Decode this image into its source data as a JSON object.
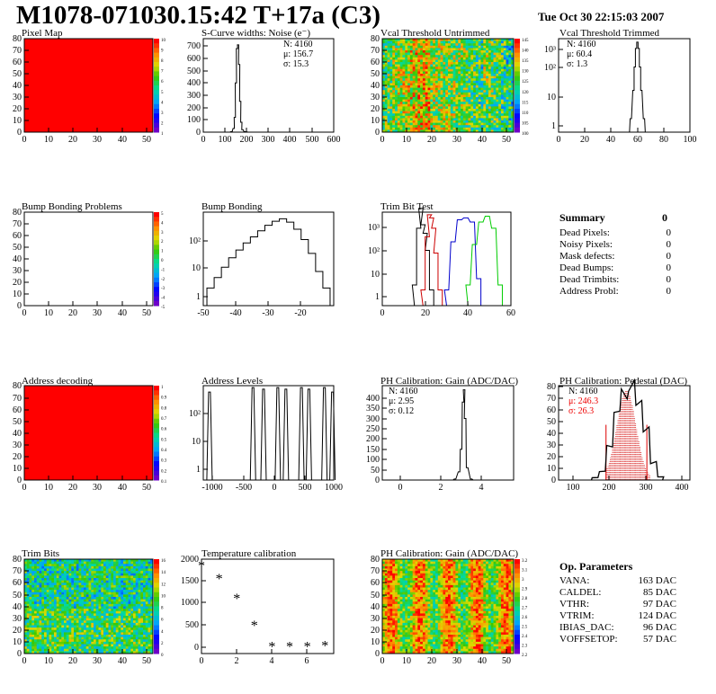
{
  "header": {
    "title": "M1078-071030.15:42 T+17a (C3)",
    "date": "Tue Oct 30 22:15:03 2007"
  },
  "colors": {
    "red": "#ff0000",
    "frame": "#000000",
    "trim_green": "#00cc00",
    "trim_blue": "#0000cc",
    "trim_red": "#cc0000"
  },
  "panels": {
    "pixel_map": {
      "title": "Pixel Map",
      "xticks": [
        "0",
        "10",
        "20",
        "30",
        "40",
        "50"
      ],
      "yticks": [
        "0",
        "10",
        "20",
        "30",
        "40",
        "50",
        "60",
        "70",
        "80"
      ],
      "zticks": [
        "10",
        "9",
        "8",
        "7",
        "6",
        "5",
        "4",
        "3",
        "2",
        "1"
      ],
      "fill": "uniform red"
    },
    "noise": {
      "title": "S-Curve widths: Noise (e⁻)",
      "xticks": [
        "0",
        "100",
        "200",
        "300",
        "400",
        "500",
        "600"
      ],
      "yticks": [
        "0",
        "100",
        "200",
        "300",
        "400",
        "500",
        "600",
        "700"
      ],
      "stats": [
        "N: 4160",
        "μ: 156.7",
        "σ: 15.3"
      ]
    },
    "vcal_untrimmed": {
      "title": "Vcal Threshold Untrimmed",
      "xticks": [
        "0",
        "10",
        "20",
        "30",
        "40",
        "50"
      ],
      "yticks": [
        "0",
        "10",
        "20",
        "30",
        "40",
        "50",
        "60",
        "70",
        "80"
      ],
      "zticks": [
        "145",
        "140",
        "135",
        "130",
        "125",
        "120",
        "115",
        "110",
        "105",
        "100"
      ]
    },
    "vcal_trimmed": {
      "title": "Vcal Threshold Trimmed",
      "xticks": [
        "0",
        "20",
        "40",
        "60",
        "80",
        "100"
      ],
      "yticks": [
        "1",
        "10",
        "10²",
        "10³"
      ],
      "stats": [
        "N: 4160",
        "μ: 60.4",
        "σ: 1.3"
      ]
    },
    "bump_problems": {
      "title": "Bump Bonding Problems",
      "xticks": [
        "0",
        "10",
        "20",
        "30",
        "40",
        "50"
      ],
      "yticks": [
        "0",
        "10",
        "20",
        "30",
        "40",
        "50",
        "60",
        "70",
        "80"
      ],
      "zticks": [
        "5",
        "4",
        "3",
        "2",
        "1",
        "0",
        "-1",
        "-2",
        "-3",
        "-4",
        "-5"
      ]
    },
    "bump_bonding": {
      "title": "Bump Bonding",
      "xticks": [
        "-50",
        "-40",
        "-30",
        "-20"
      ],
      "yticks": [
        "1",
        "10",
        "10²"
      ]
    },
    "trim_bit_test": {
      "title": "Trim Bit Test",
      "xticks": [
        "0",
        "20",
        "40",
        "60"
      ],
      "yticks": [
        "1",
        "10",
        "10²",
        "10³"
      ]
    },
    "summary": {
      "title": "Summary",
      "total": "0",
      "rows": [
        {
          "label": "Dead Pixels:",
          "value": "0"
        },
        {
          "label": "Noisy Pixels:",
          "value": "0"
        },
        {
          "label": "Mask defects:",
          "value": "0"
        },
        {
          "label": "Dead Bumps:",
          "value": "0"
        },
        {
          "label": "Dead Trimbits:",
          "value": "0"
        },
        {
          "label": "Address Probl:",
          "value": "0"
        }
      ]
    },
    "address_decoding": {
      "title": "Address decoding",
      "xticks": [
        "0",
        "10",
        "20",
        "30",
        "40",
        "50"
      ],
      "yticks": [
        "0",
        "10",
        "20",
        "30",
        "40",
        "50",
        "60",
        "70",
        "80"
      ],
      "zticks": [
        "1",
        "0.9",
        "0.8",
        "0.7",
        "0.6",
        "0.5",
        "0.4",
        "0.3",
        "0.2",
        "0.1"
      ],
      "fill": "uniform red"
    },
    "address_levels": {
      "title": "Address Levels",
      "xticks": [
        "-1000",
        "-500",
        "0",
        "500",
        "1000"
      ],
      "yticks": [
        "1",
        "10",
        "10²"
      ]
    },
    "ph_gain": {
      "title": "PH Calibration: Gain (ADC/DAC)",
      "xticks": [
        "0",
        "2",
        "4"
      ],
      "yticks": [
        "0",
        "50",
        "100",
        "150",
        "200",
        "250",
        "300",
        "350",
        "400"
      ],
      "stats": [
        "N: 4160",
        "μ: 2.95",
        "σ: 0.12"
      ]
    },
    "ph_pedestal": {
      "title": "PH Calibration: Pedestal (DAC)",
      "xticks": [
        "100",
        "200",
        "300",
        "400"
      ],
      "yticks": [
        "0",
        "10",
        "20",
        "30",
        "40",
        "50",
        "60",
        "70",
        "80"
      ],
      "stats": [
        "N: 4160",
        "μ: 246.3",
        "σ: 26.3"
      ]
    },
    "trim_bits": {
      "title": "Trim Bits",
      "xticks": [
        "0",
        "10",
        "20",
        "30",
        "40",
        "50"
      ],
      "yticks": [
        "0",
        "10",
        "20",
        "30",
        "40",
        "50",
        "60",
        "70",
        "80"
      ],
      "zticks": [
        "16",
        "14",
        "12",
        "10",
        "8",
        "6",
        "4",
        "2",
        "0"
      ]
    },
    "temperature": {
      "title": "Temperature calibration",
      "xticks": [
        "0",
        "2",
        "4",
        "6"
      ],
      "yticks": [
        "0",
        "500",
        "1000",
        "1500",
        "2000"
      ]
    },
    "ph_gain_map": {
      "title": "PH Calibration: Gain (ADC/DAC)",
      "xticks": [
        "0",
        "10",
        "20",
        "30",
        "40",
        "50"
      ],
      "yticks": [
        "0",
        "10",
        "20",
        "30",
        "40",
        "50",
        "60",
        "70",
        "80"
      ],
      "zticks": [
        "3.2",
        "3.1",
        "3",
        "2.9",
        "2.8",
        "2.7",
        "2.6",
        "2.5",
        "2.4",
        "2.3",
        "2.2"
      ]
    },
    "op_params": {
      "title": "Op. Parameters",
      "rows": [
        {
          "label": "VANA:",
          "value": "163 DAC"
        },
        {
          "label": "CALDEL:",
          "value": "85 DAC"
        },
        {
          "label": "VTHR:",
          "value": "97 DAC"
        },
        {
          "label": "VTRIM:",
          "value": "124 DAC"
        },
        {
          "label": "IBIAS_DAC:",
          "value": "96 DAC"
        },
        {
          "label": "VOFFSETOP:",
          "value": "57 DAC"
        }
      ]
    }
  },
  "chart_data": [
    {
      "type": "histogram",
      "title": "S-Curve widths: Noise (e⁻)",
      "x": [
        130,
        140,
        145,
        150,
        155,
        160,
        165,
        170,
        175,
        180,
        190,
        200
      ],
      "values": [
        5,
        30,
        120,
        400,
        680,
        710,
        550,
        250,
        80,
        20,
        5,
        2
      ],
      "xlim": [
        0,
        600
      ],
      "ylim": [
        0,
        760
      ]
    },
    {
      "type": "histogram",
      "title": "Vcal Threshold Trimmed",
      "scale": "log",
      "x": [
        55,
        57,
        58,
        59,
        60,
        61,
        62,
        63,
        65
      ],
      "values": [
        3,
        30,
        200,
        900,
        1500,
        900,
        200,
        30,
        3
      ],
      "xlim": [
        0,
        100
      ]
    },
    {
      "type": "histogram",
      "title": "Bump Bonding",
      "scale": "log",
      "x": [
        -49,
        -47,
        -45,
        -43,
        -41,
        -39,
        -37,
        -35,
        -33,
        -31,
        -29,
        -27,
        -25,
        -23,
        -21,
        -19,
        -17
      ],
      "values": [
        2,
        4,
        8,
        15,
        25,
        40,
        60,
        90,
        130,
        170,
        200,
        160,
        100,
        50,
        20,
        6,
        2
      ],
      "xlim": [
        -50,
        -15
      ]
    },
    {
      "type": "histogram",
      "title": "Trim Bit Test",
      "scale": "log",
      "series": [
        {
          "name": "",
          "color": "#000000",
          "x": [
            15,
            17,
            18,
            19,
            20,
            21,
            23
          ],
          "values": [
            3,
            300,
            1500,
            400,
            200,
            50,
            2
          ]
        },
        {
          "name": "",
          "color": "#cc0000",
          "x": [
            19,
            21,
            22,
            23,
            24,
            25,
            27
          ],
          "values": [
            2,
            150,
            900,
            700,
            300,
            40,
            2
          ]
        },
        {
          "name": "",
          "color": "#0000cc",
          "x": [
            30,
            33,
            36,
            39,
            42,
            45
          ],
          "values": [
            2,
            100,
            600,
            700,
            500,
            5
          ]
        },
        {
          "name": "",
          "color": "#00cc00",
          "x": [
            40,
            43,
            46,
            49,
            52,
            55
          ],
          "values": [
            3,
            80,
            500,
            800,
            300,
            3
          ]
        }
      ],
      "xlim": [
        0,
        60
      ]
    },
    {
      "type": "histogram",
      "title": "Address Levels",
      "scale": "log",
      "x": [
        -1000,
        -300,
        -130,
        100,
        230,
        480,
        600,
        850,
        980
      ],
      "values": [
        150,
        200,
        180,
        200,
        180,
        200,
        180,
        200,
        150
      ],
      "xlim": [
        -1100,
        1000
      ]
    },
    {
      "type": "histogram",
      "title": "PH Calibration: Gain (ADC/DAC)",
      "x": [
        2.6,
        2.8,
        2.9,
        3.0,
        3.05,
        3.1,
        3.2,
        3.4
      ],
      "values": [
        5,
        40,
        150,
        380,
        440,
        300,
        60,
        5
      ],
      "xlim": [
        -1,
        5.5
      ],
      "ylim": [
        0,
        450
      ]
    },
    {
      "type": "histogram",
      "title": "PH Calibration: Pedestal (DAC)",
      "x": [
        160,
        180,
        200,
        220,
        240,
        260,
        280,
        300,
        320,
        340
      ],
      "values": [
        2,
        8,
        30,
        60,
        75,
        80,
        70,
        45,
        15,
        3
      ],
      "xlim": [
        60,
        420
      ],
      "ylim": [
        0,
        80
      ]
    },
    {
      "type": "scatter",
      "title": "Temperature calibration",
      "x": [
        0,
        1,
        2,
        3,
        4,
        5,
        6,
        7
      ],
      "values": [
        1850,
        1550,
        1100,
        480,
        0,
        0,
        0,
        20
      ],
      "xlim": [
        0,
        7.5
      ],
      "ylim": [
        -150,
        2000
      ]
    }
  ]
}
